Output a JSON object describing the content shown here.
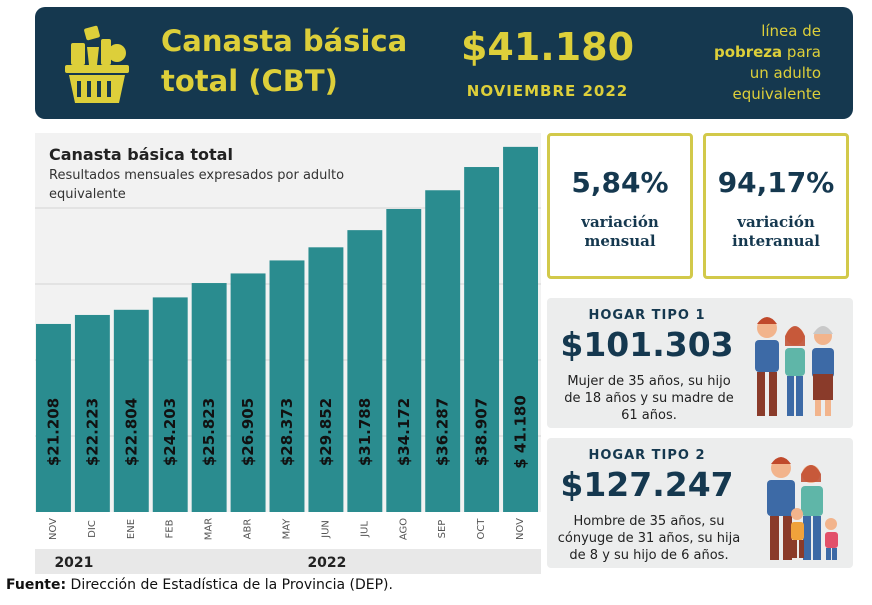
{
  "header": {
    "title_line1": "Canasta básica",
    "title_line2": "total (CBT)",
    "price": "$41.180",
    "month": "NOVIEMBRE 2022",
    "poverty_line1": "línea de",
    "poverty_bold": "pobreza",
    "poverty_line2_rest": " para",
    "poverty_line3": "un adulto",
    "poverty_line4": "equivalente"
  },
  "kpis": [
    {
      "value": "5,84%",
      "label1": "variación",
      "label2": "mensual"
    },
    {
      "value": "94,17%",
      "label1": "variación",
      "label2": "interanual"
    }
  ],
  "households": [
    {
      "type": "HOGAR TIPO 1",
      "amount": "$101.303",
      "desc1": "Mujer de 35 años, su hijo",
      "desc2": "de 18 años y su madre de",
      "desc3": "61 años."
    },
    {
      "type": "HOGAR TIPO 2",
      "amount": "$127.247",
      "desc1": "Hombre de 35 años, su",
      "desc2": "cónyuge de 31 años, su hija",
      "desc3": "de 8 y su hijo de 6 años."
    }
  ],
  "source_label": "Fuente:",
  "source_text": " Dirección de Estadística de la Provincia (DEP).",
  "colors": {
    "navy": "#15384f",
    "gold": "#ddcf3a",
    "teal": "#2a8c8f"
  },
  "chart_data": {
    "type": "bar",
    "title": "Canasta básica total",
    "subtitle": "Resultados mensuales expresados por adulto equivalente",
    "categories": [
      "NOV",
      "DIC",
      "ENE",
      "FEB",
      "MAR",
      "ABR",
      "MAY",
      "JUN",
      "JUL",
      "AGO",
      "SEP",
      "OCT",
      "NOV"
    ],
    "values": [
      21208,
      22223,
      22804,
      24203,
      25823,
      26905,
      28373,
      29852,
      31788,
      34172,
      36287,
      38907,
      41180
    ],
    "labels": [
      "$21.208",
      "$22.223",
      "$22.804",
      "$24.203",
      "$25.823",
      "$26.905",
      "$28.373",
      "$29.852",
      "$31.788",
      "$34.172",
      "$36.287",
      "$38.907",
      "$ 41.180"
    ],
    "years": [
      {
        "label": "2021",
        "months": 2
      },
      {
        "label": "2022",
        "months": 11
      }
    ],
    "ylim": [
      0,
      42000
    ],
    "grid": true
  }
}
